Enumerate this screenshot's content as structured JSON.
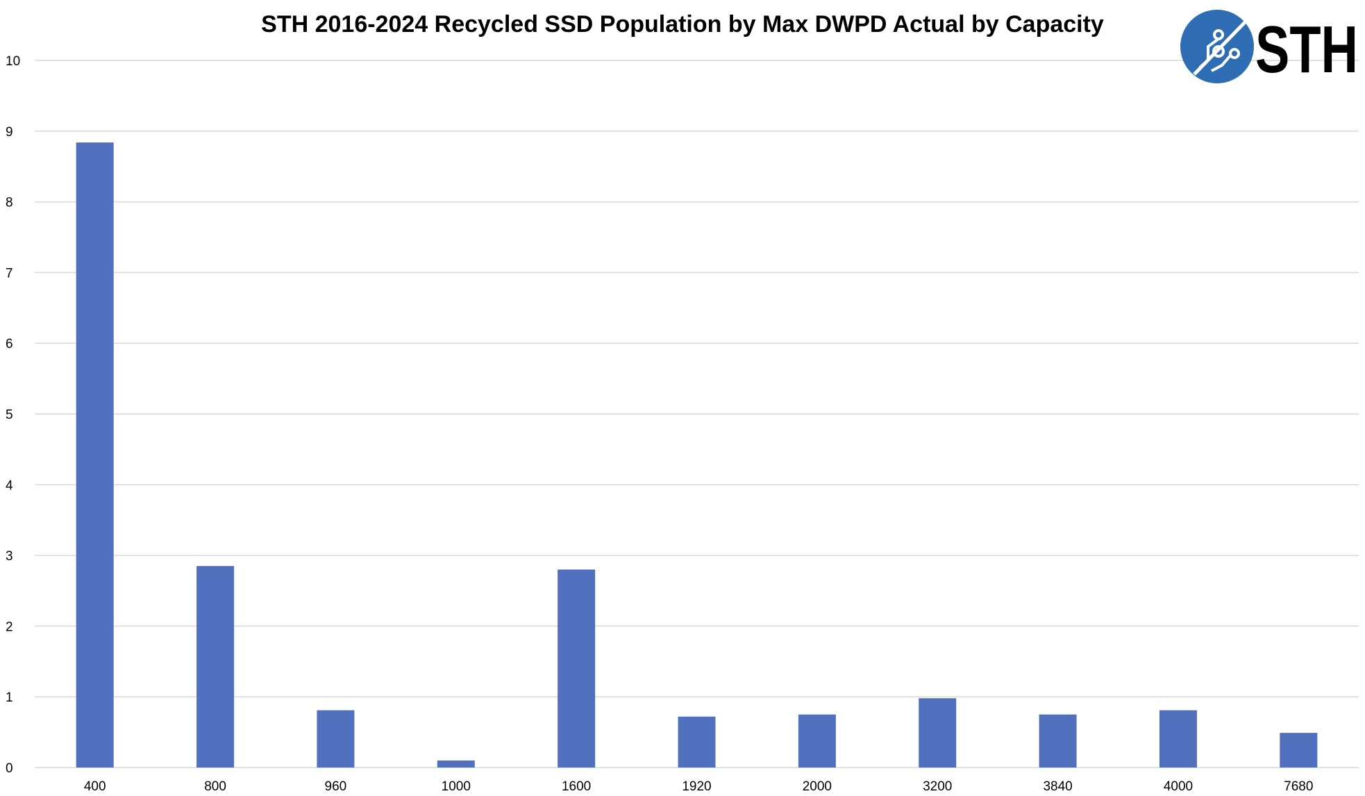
{
  "chart_data": {
    "type": "bar",
    "title": "STH 2016-2024 Recycled SSD Population by Max DWPD Actual by Capacity",
    "xlabel": "",
    "ylabel": "",
    "categories": [
      "400",
      "800",
      "960",
      "1000",
      "1600",
      "1920",
      "2000",
      "3200",
      "3840",
      "4000",
      "7680"
    ],
    "values": [
      8.84,
      2.85,
      0.81,
      0.1,
      2.8,
      0.72,
      0.75,
      0.98,
      0.75,
      0.81,
      0.49
    ],
    "ylim": [
      0,
      10
    ],
    "yticks": [
      "0",
      "1",
      "2",
      "3",
      "4",
      "5",
      "6",
      "7",
      "8",
      "9",
      "10"
    ],
    "grid": true,
    "bar_color": "#5171BE",
    "grid_color": "#D9D9D9"
  },
  "logo": {
    "text": "STH",
    "color": "#2E6DB4"
  }
}
